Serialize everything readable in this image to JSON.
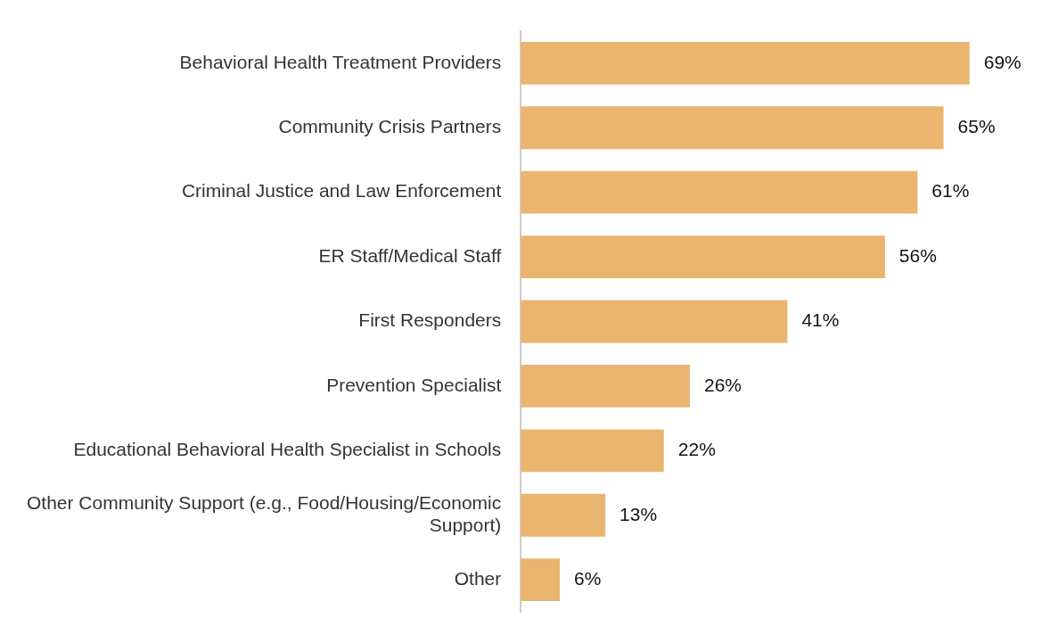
{
  "chart_data": {
    "type": "bar",
    "orientation": "horizontal",
    "categories": [
      "Behavioral Health Treatment Providers",
      "Community Crisis Partners",
      "Criminal Justice and Law Enforcement",
      "ER Staff/Medical Staff",
      "First Responders",
      "Prevention Specialist",
      "Educational Behavioral Health Specialist in Schools",
      "Other Community Support (e.g., Food/Housing/Economic Support)",
      "Other"
    ],
    "values": [
      69,
      65,
      61,
      56,
      41,
      26,
      22,
      13,
      6
    ],
    "value_labels": [
      "69%",
      "65%",
      "61%",
      "56%",
      "41%",
      "26%",
      "22%",
      "13%",
      "6%"
    ],
    "color": "#e9b56f",
    "grid": false,
    "legend": false,
    "tick_labels": "y"
  }
}
